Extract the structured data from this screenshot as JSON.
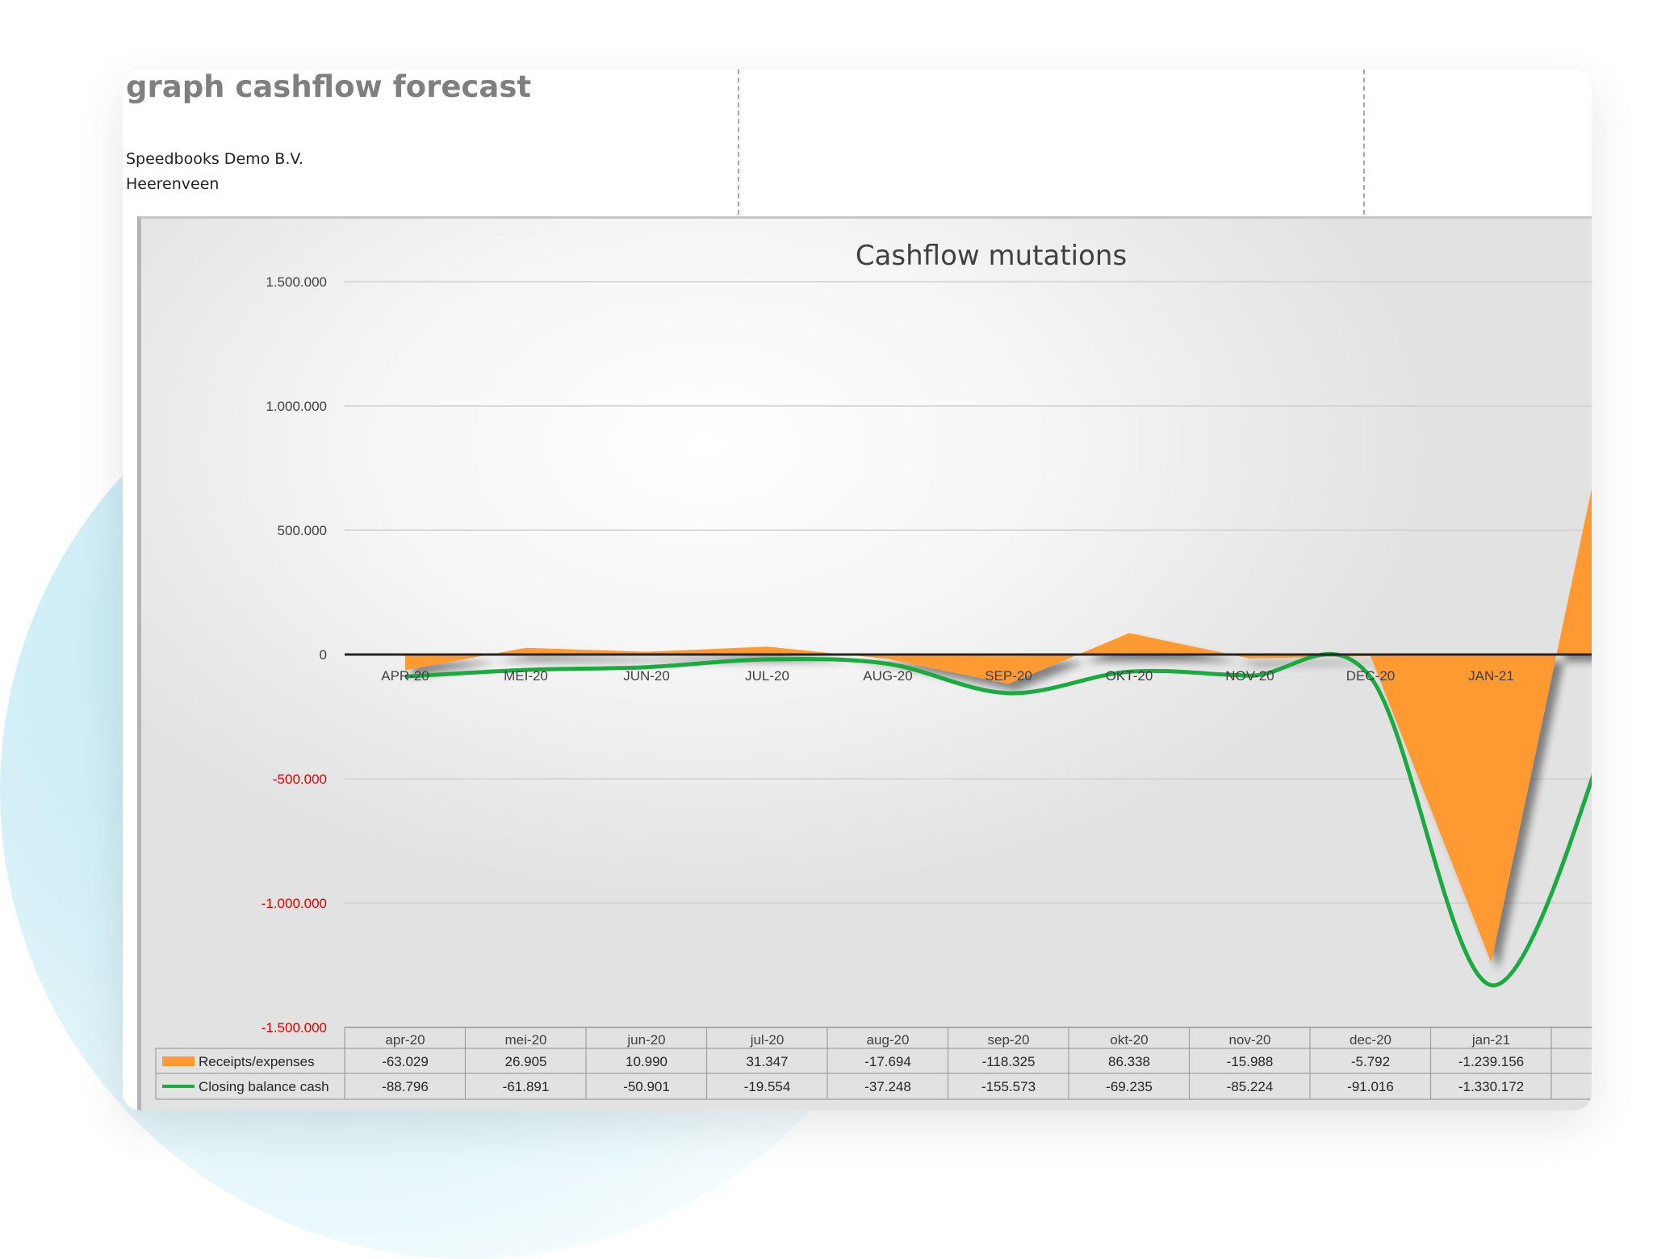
{
  "sheet": {
    "title": "graph cashflow forecast",
    "company_name": "Speedbooks Demo B.V.",
    "company_city": "Heerenveen"
  },
  "colors": {
    "receipts": "#FF9933",
    "balance": "#1AAA3F",
    "negative_tick": "#E00000"
  },
  "chart_data": {
    "type": "area",
    "title": "Cashflow mutations",
    "categories_axis": [
      "APR-20",
      "MEI-20",
      "JUN-20",
      "JUL-20",
      "AUG-20",
      "SEP-20",
      "OKT-20",
      "NOV-20",
      "DEC-20",
      "JAN-21"
    ],
    "categories_table": [
      "apr-20",
      "mei-20",
      "jun-20",
      "jul-20",
      "aug-20",
      "sep-20",
      "okt-20",
      "nov-20",
      "dec-20",
      "jan-21"
    ],
    "ylim": [
      -1500000,
      1500000
    ],
    "yticks": [
      {
        "value": 1500000,
        "label": "1.500.000"
      },
      {
        "value": 1000000,
        "label": "1.000.000"
      },
      {
        "value": 500000,
        "label": "500.000"
      },
      {
        "value": 0,
        "label": "0"
      },
      {
        "value": -500000,
        "label": "-500.000"
      },
      {
        "value": -1000000,
        "label": "-1.000.000"
      },
      {
        "value": -1500000,
        "label": "-1.500.000"
      }
    ],
    "grid": true,
    "legend": "data-table",
    "series": [
      {
        "name": "Receipts/expenses",
        "kind": "area",
        "values": [
          -63029,
          26905,
          10990,
          31347,
          -17694,
          -118325,
          86338,
          -15988,
          -5792,
          -1239156
        ],
        "labels": [
          "-63.029",
          "26.905",
          "10.990",
          "31.347",
          "-17.694",
          "-118.325",
          "86.338",
          "-15.988",
          "-5.792",
          "-1.239.156"
        ],
        "next_value": 1050000
      },
      {
        "name": "Closing balance cash",
        "kind": "line",
        "values": [
          -88796,
          -61891,
          -50901,
          -19554,
          -37248,
          -155573,
          -69235,
          -85224,
          -91016,
          -1330172
        ],
        "labels": [
          "-88.796",
          "-61.891",
          "-50.901",
          "-19.554",
          "-37.248",
          "-155.573",
          "-69.235",
          "-85.224",
          "-91.016",
          "-1.330.172"
        ],
        "next_value": -280000
      }
    ]
  }
}
